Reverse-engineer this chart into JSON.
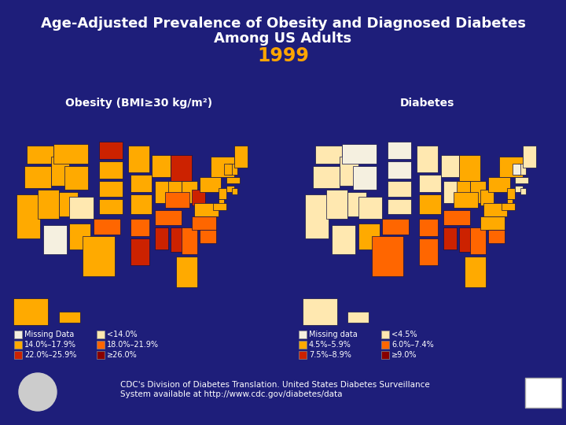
{
  "bg_color": "#1e1e7a",
  "title_line1": "Age-Adjusted Prevalence of Obesity and Diagnosed Diabetes",
  "title_line2": "Among US Adults",
  "year": "1999",
  "title_color": "#ffffff",
  "year_color": "#ffa500",
  "obesity_label": "Obesity (BMI≥30 kg/m²)",
  "diabetes_label": "Diabetes",
  "obesity_legend_col1": [
    {
      "label": "Missing Data",
      "color": "#f5f0e0"
    },
    {
      "label": "14.0%–17.9%",
      "color": "#ffaa00"
    },
    {
      "label": "22.0%–25.9%",
      "color": "#cc2200"
    }
  ],
  "obesity_legend_col2": [
    {
      "label": "<14.0%",
      "color": "#ffe8b0"
    },
    {
      "label": "18.0%–21.9%",
      "color": "#ff6600"
    },
    {
      "label": "≥26.0%",
      "color": "#880000"
    }
  ],
  "diabetes_legend_col1": [
    {
      "label": "Missing data",
      "color": "#f5f0e0"
    },
    {
      "label": "4.5%–5.9%",
      "color": "#ffaa00"
    },
    {
      "label": "7.5%–8.9%",
      "color": "#cc2200"
    }
  ],
  "diabetes_legend_col2": [
    {
      "label": "<4.5%",
      "color": "#ffe8b0"
    },
    {
      "label": "6.0%–7.4%",
      "color": "#ff6600"
    },
    {
      "label": "≥9.0%",
      "color": "#880000"
    }
  ],
  "footer_text": "CDC's Division of Diabetes Translation. United States Diabetes Surveillance\nSystem available at http://www.cdc.gov/diabetes/data",
  "obesity_state_colors": {
    "AL": "#cc2200",
    "AK": "#ffaa00",
    "AZ": "#f5f0e0",
    "AR": "#ff6600",
    "CA": "#ffaa00",
    "CO": "#ffe8b0",
    "CT": "#ffaa00",
    "DE": "#ffaa00",
    "FL": "#ffaa00",
    "GA": "#ff6600",
    "HI": "#ffaa00",
    "ID": "#ffaa00",
    "IL": "#ffaa00",
    "IN": "#ffaa00",
    "IA": "#ffaa00",
    "KS": "#ffaa00",
    "KY": "#ff6600",
    "LA": "#cc2200",
    "ME": "#ffaa00",
    "MD": "#ffaa00",
    "MA": "#ffaa00",
    "MI": "#cc2200",
    "MN": "#ffaa00",
    "MS": "#cc2200",
    "MO": "#ffaa00",
    "MT": "#ffaa00",
    "NE": "#ffaa00",
    "NV": "#ffaa00",
    "NH": "#ffaa00",
    "NJ": "#ffaa00",
    "NM": "#ffaa00",
    "NY": "#ffaa00",
    "NC": "#ff6600",
    "ND": "#cc2200",
    "OH": "#ffaa00",
    "OK": "#ff6600",
    "OR": "#ffaa00",
    "PA": "#ffaa00",
    "RI": "#ffaa00",
    "SC": "#ff6600",
    "SD": "#ffaa00",
    "TN": "#ff6600",
    "TX": "#ffaa00",
    "UT": "#ffaa00",
    "VT": "#ffaa00",
    "VA": "#ffaa00",
    "WA": "#ffaa00",
    "WV": "#cc2200",
    "WI": "#ffaa00",
    "WY": "#ffaa00"
  },
  "diabetes_state_colors": {
    "AL": "#cc2200",
    "AK": "#ffe8b0",
    "AZ": "#ffe8b0",
    "AR": "#ff6600",
    "CA": "#ffe8b0",
    "CO": "#ffe8b0",
    "CT": "#ffe8b0",
    "DE": "#ffaa00",
    "FL": "#ffaa00",
    "GA": "#ff6600",
    "HI": "#ffe8b0",
    "ID": "#ffe8b0",
    "IL": "#ffe8b0",
    "IN": "#ffaa00",
    "IA": "#ffe8b0",
    "KS": "#ffe8b0",
    "KY": "#ffaa00",
    "LA": "#ff6600",
    "ME": "#ffe8b0",
    "MD": "#ffaa00",
    "MA": "#ffe8b0",
    "MI": "#ffaa00",
    "MN": "#ffe8b0",
    "MS": "#cc2200",
    "MO": "#ffaa00",
    "MT": "#f5f0e0",
    "NE": "#ffe8b0",
    "NV": "#ffe8b0",
    "NH": "#ffe8b0",
    "NJ": "#ffaa00",
    "NM": "#ffaa00",
    "NY": "#ffaa00",
    "NC": "#ffaa00",
    "ND": "#f5f0e0",
    "OH": "#ffaa00",
    "OK": "#ff6600",
    "OR": "#ffe8b0",
    "PA": "#ffaa00",
    "RI": "#ffe8b0",
    "SC": "#ff6600",
    "SD": "#f5f0e0",
    "TN": "#ff6600",
    "TX": "#ff6600",
    "UT": "#ffe8b0",
    "VT": "#f5f0e0",
    "VA": "#ffaa00",
    "WA": "#ffe8b0",
    "WV": "#ffaa00",
    "WI": "#ffe8b0",
    "WY": "#f5f0e0"
  }
}
